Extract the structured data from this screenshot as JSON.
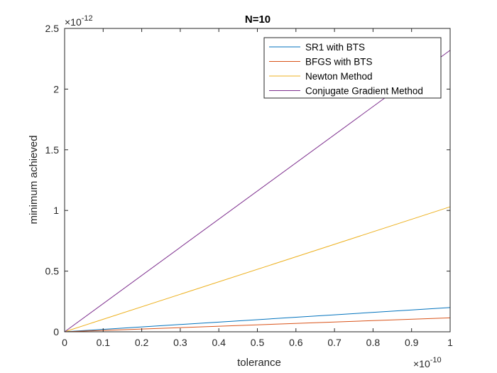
{
  "chart_data": {
    "type": "line",
    "title": "N=10",
    "xlabel": "tolerance",
    "ylabel": "minimum achieved",
    "x_exponent_label": "×10",
    "x_exponent": "-10",
    "y_exponent_label": "×10",
    "y_exponent": "-12",
    "xlim": [
      0,
      1
    ],
    "ylim": [
      0,
      2.5
    ],
    "x_ticks": [
      "0",
      "0.1",
      "0.2",
      "0.3",
      "0.4",
      "0.5",
      "0.6",
      "0.7",
      "0.8",
      "0.9",
      "1"
    ],
    "y_ticks": [
      "0",
      "0.5",
      "1",
      "1.5",
      "2",
      "2.5"
    ],
    "legend_position": "top-right",
    "grid": false,
    "series": [
      {
        "name": "SR1 with BTS",
        "color": "#0072BD",
        "x": [
          0,
          1
        ],
        "y": [
          0,
          0.2
        ]
      },
      {
        "name": "BFGS with BTS",
        "color": "#D95319",
        "x": [
          0,
          1
        ],
        "y": [
          0,
          0.115
        ]
      },
      {
        "name": "Newton Method",
        "color": "#EDB120",
        "x": [
          0,
          1
        ],
        "y": [
          0,
          1.03
        ]
      },
      {
        "name": "Conjugate Gradient Method",
        "color": "#7E2F8E",
        "x": [
          0,
          1
        ],
        "y": [
          0,
          2.32
        ]
      }
    ]
  }
}
